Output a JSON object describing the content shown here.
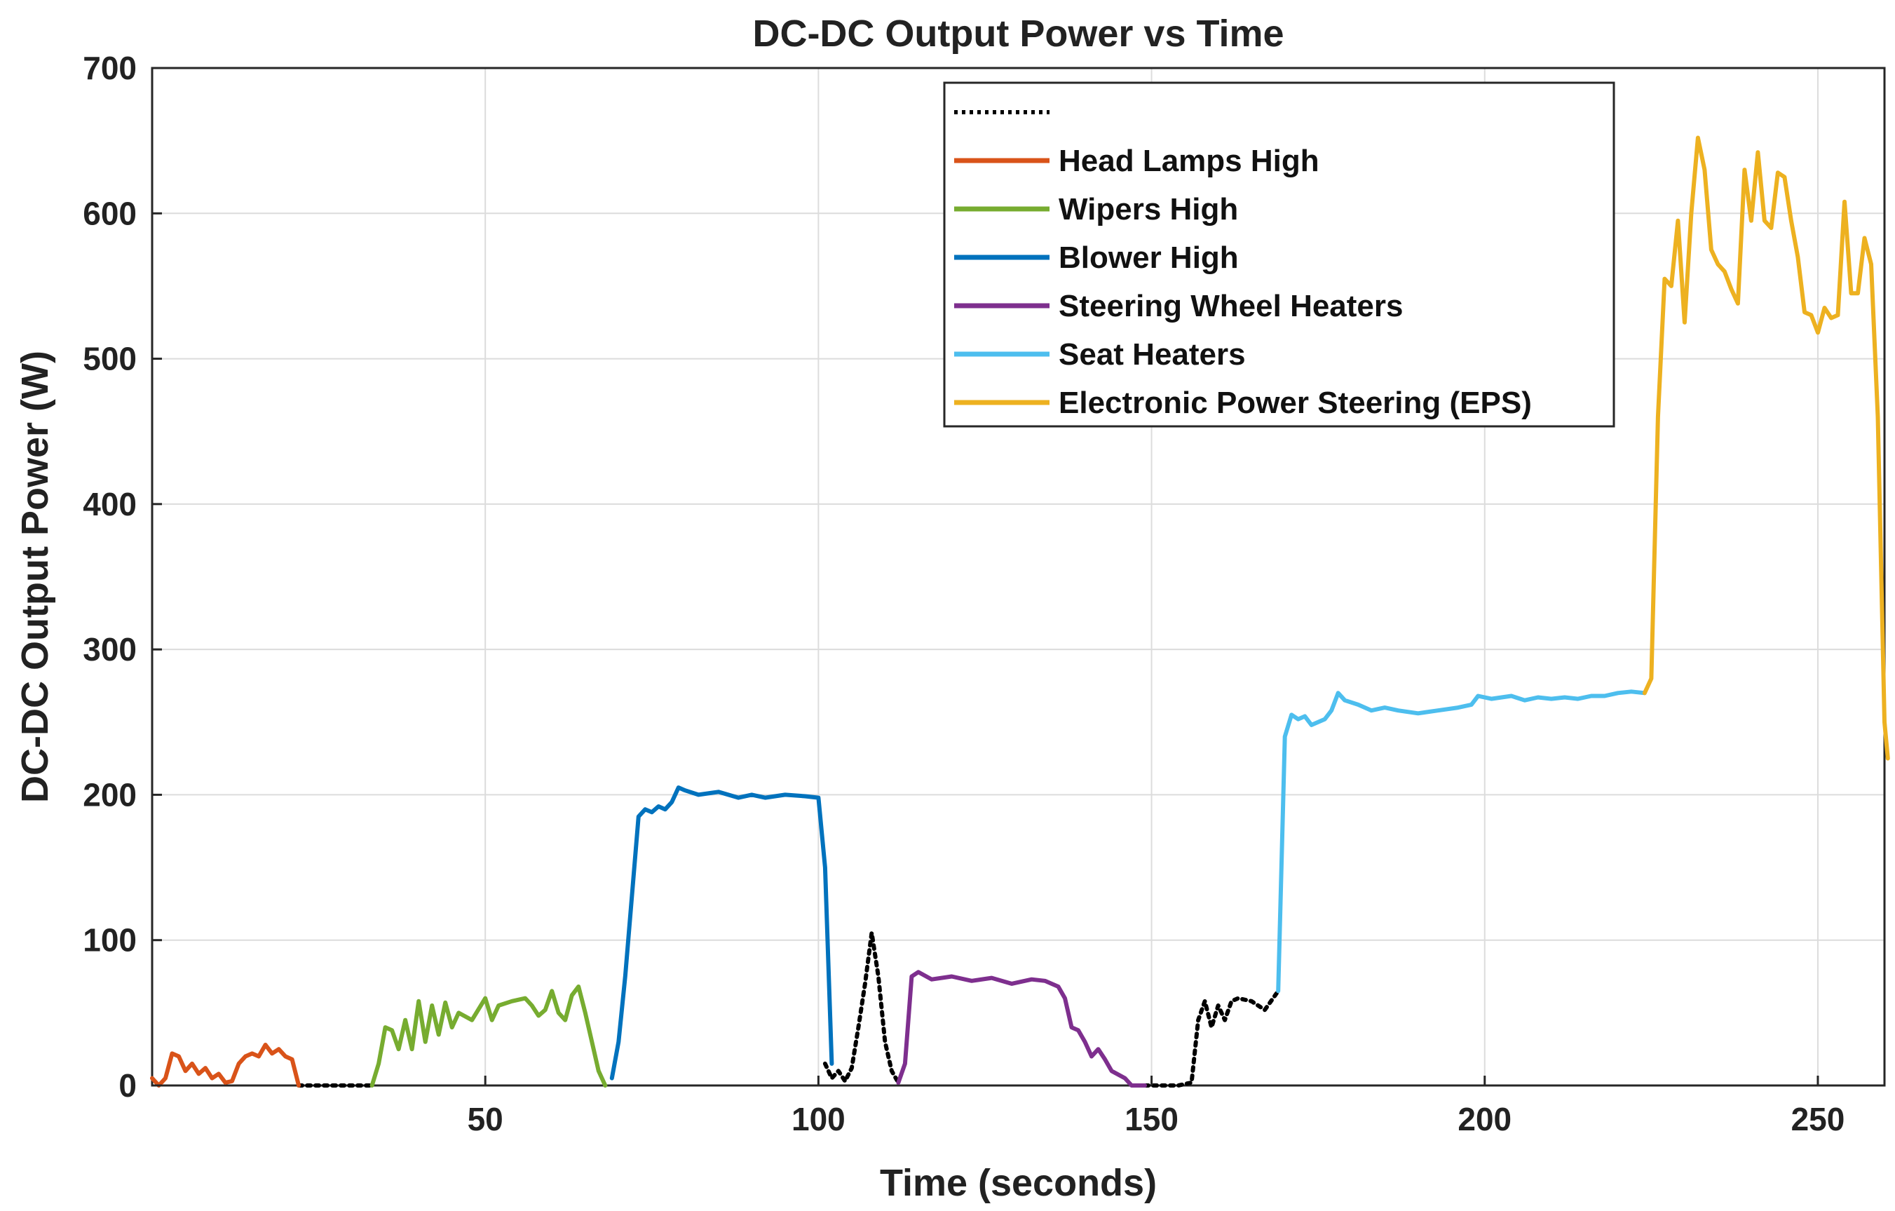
{
  "chart_data": {
    "type": "line",
    "title": "DC-DC Output Power vs Time",
    "xlabel": "Time (seconds)",
    "ylabel": "DC-DC Output Power (W)",
    "xlim": [
      0,
      260
    ],
    "ylim": [
      0,
      700
    ],
    "xticks": [
      50,
      100,
      150,
      200,
      250
    ],
    "yticks": [
      0,
      100,
      200,
      300,
      400,
      500,
      600,
      700
    ],
    "grid": true,
    "legend_position": "top-right",
    "series": [
      {
        "name": "",
        "color": "#000000",
        "style": "dotted",
        "segments": [
          [
            [
              22,
              0
            ],
            [
              24,
              0
            ],
            [
              28,
              0
            ],
            [
              32,
              0
            ],
            [
              33,
              0
            ]
          ],
          [
            [
              101,
              15
            ],
            [
              102,
              5
            ],
            [
              103,
              10
            ],
            [
              104,
              3
            ],
            [
              105,
              12
            ],
            [
              106,
              40
            ],
            [
              107,
              70
            ],
            [
              108,
              105
            ],
            [
              109,
              75
            ],
            [
              110,
              30
            ],
            [
              111,
              10
            ],
            [
              112,
              2
            ]
          ],
          [
            [
              149,
              0
            ],
            [
              151,
              0
            ],
            [
              154,
              0
            ],
            [
              156,
              2
            ],
            [
              157,
              45
            ],
            [
              158,
              58
            ],
            [
              159,
              40
            ],
            [
              160,
              55
            ],
            [
              161,
              45
            ],
            [
              162,
              58
            ],
            [
              163,
              60
            ],
            [
              165,
              58
            ],
            [
              167,
              52
            ],
            [
              169,
              65
            ]
          ]
        ]
      },
      {
        "name": "Head Lamps High",
        "color": "#D95319",
        "style": "solid",
        "segments": [
          [
            [
              0,
              5
            ],
            [
              1,
              0
            ],
            [
              2,
              5
            ],
            [
              3,
              22
            ],
            [
              4,
              20
            ],
            [
              5,
              10
            ],
            [
              6,
              15
            ],
            [
              7,
              8
            ],
            [
              8,
              12
            ],
            [
              9,
              5
            ],
            [
              10,
              8
            ],
            [
              11,
              2
            ],
            [
              12,
              3
            ],
            [
              13,
              15
            ],
            [
              14,
              20
            ],
            [
              15,
              22
            ],
            [
              16,
              20
            ],
            [
              17,
              28
            ],
            [
              18,
              22
            ],
            [
              19,
              25
            ],
            [
              20,
              20
            ],
            [
              21,
              18
            ],
            [
              22,
              0
            ]
          ]
        ]
      },
      {
        "name": "Wipers High",
        "color": "#77AC30",
        "style": "solid",
        "segments": [
          [
            [
              33,
              0
            ],
            [
              34,
              15
            ],
            [
              35,
              40
            ],
            [
              36,
              38
            ],
            [
              37,
              25
            ],
            [
              38,
              45
            ],
            [
              39,
              25
            ],
            [
              40,
              58
            ],
            [
              41,
              30
            ],
            [
              42,
              55
            ],
            [
              43,
              35
            ],
            [
              44,
              57
            ],
            [
              45,
              40
            ],
            [
              46,
              50
            ],
            [
              48,
              45
            ],
            [
              50,
              60
            ],
            [
              51,
              45
            ],
            [
              52,
              55
            ],
            [
              54,
              58
            ],
            [
              56,
              60
            ],
            [
              57,
              55
            ],
            [
              58,
              48
            ],
            [
              59,
              52
            ],
            [
              60,
              65
            ],
            [
              61,
              50
            ],
            [
              62,
              45
            ],
            [
              63,
              62
            ],
            [
              64,
              68
            ],
            [
              65,
              50
            ],
            [
              66,
              30
            ],
            [
              67,
              10
            ],
            [
              68,
              0
            ]
          ]
        ]
      },
      {
        "name": "Blower High",
        "color": "#0072BD",
        "style": "solid",
        "segments": [
          [
            [
              69,
              5
            ],
            [
              70,
              30
            ],
            [
              71,
              75
            ],
            [
              72,
              130
            ],
            [
              73,
              185
            ],
            [
              74,
              190
            ],
            [
              75,
              188
            ],
            [
              76,
              192
            ],
            [
              77,
              190
            ],
            [
              78,
              195
            ],
            [
              79,
              205
            ],
            [
              80,
              203
            ],
            [
              82,
              200
            ],
            [
              85,
              202
            ],
            [
              88,
              198
            ],
            [
              90,
              200
            ],
            [
              92,
              198
            ],
            [
              95,
              200
            ],
            [
              98,
              199
            ],
            [
              100,
              198
            ],
            [
              101,
              150
            ],
            [
              102,
              15
            ]
          ]
        ]
      },
      {
        "name": "Steering Wheel Heaters",
        "color": "#7E2F8E",
        "style": "solid",
        "segments": [
          [
            [
              112,
              2
            ],
            [
              113,
              15
            ],
            [
              114,
              75
            ],
            [
              115,
              78
            ],
            [
              117,
              73
            ],
            [
              120,
              75
            ],
            [
              123,
              72
            ],
            [
              126,
              74
            ],
            [
              129,
              70
            ],
            [
              132,
              73
            ],
            [
              134,
              72
            ],
            [
              136,
              68
            ],
            [
              137,
              60
            ],
            [
              138,
              40
            ],
            [
              139,
              38
            ],
            [
              140,
              30
            ],
            [
              141,
              20
            ],
            [
              142,
              25
            ],
            [
              143,
              18
            ],
            [
              144,
              10
            ],
            [
              146,
              5
            ],
            [
              147,
              0
            ],
            [
              149,
              0
            ]
          ]
        ]
      },
      {
        "name": "Seat Heaters",
        "color": "#4DBEEE",
        "style": "solid",
        "segments": [
          [
            [
              169,
              65
            ],
            [
              170,
              240
            ],
            [
              171,
              255
            ],
            [
              172,
              252
            ],
            [
              173,
              254
            ],
            [
              174,
              248
            ],
            [
              176,
              252
            ],
            [
              177,
              258
            ],
            [
              178,
              270
            ],
            [
              179,
              265
            ],
            [
              181,
              262
            ],
            [
              183,
              258
            ],
            [
              185,
              260
            ],
            [
              187,
              258
            ],
            [
              190,
              256
            ],
            [
              193,
              258
            ],
            [
              196,
              260
            ],
            [
              198,
              262
            ],
            [
              199,
              268
            ],
            [
              201,
              266
            ],
            [
              204,
              268
            ],
            [
              206,
              265
            ],
            [
              208,
              267
            ],
            [
              210,
              266
            ],
            [
              212,
              267
            ],
            [
              214,
              266
            ],
            [
              216,
              268
            ],
            [
              218,
              268
            ],
            [
              220,
              270
            ],
            [
              222,
              271
            ],
            [
              224,
              270
            ]
          ]
        ]
      },
      {
        "name": "Electronic Power Steering (EPS)",
        "color": "#EDB120",
        "style": "solid",
        "segments": [
          [
            [
              224,
              270
            ],
            [
              225,
              280
            ],
            [
              226,
              460
            ],
            [
              227,
              555
            ],
            [
              228,
              550
            ],
            [
              229,
              595
            ],
            [
              230,
              525
            ],
            [
              231,
              600
            ],
            [
              232,
              652
            ],
            [
              233,
              630
            ],
            [
              234,
              575
            ],
            [
              235,
              565
            ],
            [
              236,
              560
            ],
            [
              237,
              548
            ],
            [
              238,
              538
            ],
            [
              239,
              630
            ],
            [
              240,
              595
            ],
            [
              241,
              642
            ],
            [
              242,
              595
            ],
            [
              243,
              590
            ],
            [
              244,
              628
            ],
            [
              245,
              625
            ],
            [
              246,
              595
            ],
            [
              247,
              570
            ],
            [
              248,
              532
            ],
            [
              249,
              530
            ],
            [
              250,
              518
            ],
            [
              251,
              535
            ],
            [
              252,
              528
            ],
            [
              253,
              530
            ],
            [
              254,
              608
            ],
            [
              255,
              545
            ],
            [
              256,
              545
            ],
            [
              257,
              583
            ],
            [
              258,
              565
            ],
            [
              259,
              460
            ],
            [
              260,
              250
            ],
            [
              260.5,
              225
            ]
          ]
        ]
      }
    ]
  }
}
